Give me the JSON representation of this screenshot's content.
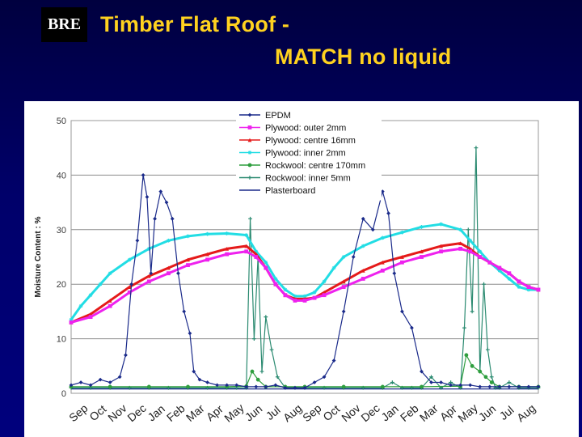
{
  "logo": "BRE",
  "title": {
    "line1": "Timber Flat Roof -",
    "line2": "MATCH no liquid"
  },
  "chart_data": {
    "type": "line",
    "title": "Timber Flat Roof - MATCH no liquid",
    "ylabel": "Moisture Content : %",
    "xlabel": "",
    "ylim": [
      0,
      50
    ],
    "yticks": [
      0,
      10,
      20,
      30,
      40,
      50
    ],
    "xlim": [
      0,
      24
    ],
    "categories": [
      "Sep",
      "Oct",
      "Nov",
      "Dec",
      "Jan",
      "Feb",
      "Mar",
      "Apr",
      "May",
      "Jun",
      "Jul",
      "Aug",
      "Sep",
      "Oct",
      "Nov",
      "Dec",
      "Jan",
      "Feb",
      "Mar",
      "Apr",
      "May",
      "Jun",
      "Jul",
      "Aug"
    ],
    "grid": "horizontal",
    "legend_position": "top-center",
    "series": [
      {
        "name": "EPDM",
        "color": "#1a2a8a",
        "marker": "diamond",
        "style": "spiky",
        "x": [
          0,
          0.5,
          1,
          1.5,
          2,
          2.5,
          2.8,
          3.1,
          3.4,
          3.7,
          3.9,
          4.1,
          4.3,
          4.6,
          4.9,
          5.2,
          5.5,
          5.8,
          6.1,
          6.3,
          6.6,
          7,
          7.5,
          8,
          8.5,
          9,
          9.5,
          10,
          10.5,
          11,
          11.5,
          12,
          12.5,
          13,
          13.5,
          14,
          14.5,
          15,
          15.5,
          16,
          16.3,
          16.6,
          17,
          17.5,
          18,
          18.5,
          19,
          19.5,
          20,
          20.5,
          21,
          21.5,
          22,
          22.5,
          23,
          23.5,
          24
        ],
        "y": [
          1.5,
          2,
          1.5,
          2.5,
          2,
          3,
          7,
          20,
          28,
          40,
          36,
          22,
          32,
          37,
          35,
          32,
          22,
          15,
          11,
          4,
          2.5,
          2,
          1.5,
          1.5,
          1.5,
          1.2,
          1.2,
          1.2,
          1.5,
          1,
          1,
          1,
          2,
          3,
          6,
          15,
          25,
          32,
          30,
          37,
          33,
          22,
          15,
          12,
          4,
          2,
          2,
          1.5,
          1.5,
          1.5,
          1.2,
          1.2,
          1.2,
          1.2,
          1.2,
          1.2,
          1.2
        ]
      },
      {
        "name": "Plywood: outer 2mm",
        "color": "#ee22ee",
        "marker": "square",
        "x": [
          0,
          1,
          2,
          3,
          4,
          5,
          6,
          7,
          8,
          9,
          9.5,
          10,
          10.5,
          11,
          11.5,
          12,
          12.5,
          13,
          14,
          15,
          16,
          17,
          18,
          19,
          20,
          20.5,
          21,
          21.5,
          22,
          22.5,
          23,
          23.5,
          24
        ],
        "y": [
          13,
          14,
          16,
          18.5,
          20.5,
          22,
          23.5,
          24.5,
          25.5,
          26,
          25,
          23,
          20,
          18,
          17,
          17,
          17.5,
          18,
          19.5,
          21,
          22.5,
          24,
          25,
          26,
          26.5,
          26,
          25,
          24,
          23,
          22,
          20.5,
          19.5,
          19
        ]
      },
      {
        "name": "Plywood: centre 16mm",
        "color": "#e51a1a",
        "marker": "triangle",
        "x": [
          0,
          1,
          2,
          3,
          4,
          5,
          6,
          7,
          8,
          9,
          9.5,
          10,
          10.5,
          11,
          11.5,
          12,
          12.5,
          13,
          14,
          15,
          16,
          17,
          18,
          19,
          20,
          20.5,
          21,
          21.5,
          22,
          22.5,
          23,
          23.5,
          24
        ],
        "y": [
          13,
          14.5,
          17,
          19.5,
          21.5,
          23,
          24.5,
          25.5,
          26.5,
          27,
          25.5,
          23,
          20,
          18,
          17.3,
          17.3,
          17.5,
          18.5,
          20.5,
          22.5,
          24,
          25,
          26,
          27,
          27.5,
          26.5,
          25,
          24,
          23,
          22,
          20.5,
          19.5,
          19
        ]
      },
      {
        "name": "Plywood: inner 2mm",
        "color": "#22dde4",
        "marker": "star",
        "x": [
          0,
          0.5,
          1,
          1.5,
          2,
          3,
          4,
          5,
          6,
          7,
          8,
          9,
          9.5,
          10,
          10.5,
          11,
          11.5,
          12,
          12.5,
          13,
          13.5,
          14,
          15,
          16,
          17,
          18,
          19,
          20,
          20.5,
          21,
          21.5,
          22,
          22.5,
          23,
          23.5,
          24
        ],
        "y": [
          13.5,
          16,
          18,
          20,
          22,
          24.5,
          26.5,
          28,
          28.8,
          29.2,
          29.3,
          29,
          26,
          24,
          21,
          19,
          17.8,
          17.8,
          18.5,
          20.5,
          23,
          25,
          27,
          28.5,
          29.5,
          30.5,
          31,
          30,
          28,
          26,
          24,
          22.5,
          21,
          19.5,
          19,
          19
        ]
      },
      {
        "name": "Rockwool: centre 170mm",
        "color": "#2e9e3e",
        "marker": "circle",
        "x": [
          0,
          2,
          4,
          6,
          8,
          9,
          9.3,
          9.6,
          10,
          11,
          12,
          14,
          16,
          18,
          20,
          20.3,
          20.6,
          21,
          21.3,
          21.6,
          22,
          23,
          24
        ],
        "y": [
          1.2,
          1.2,
          1.2,
          1.2,
          1.2,
          1.3,
          4,
          2.5,
          1.2,
          1.2,
          1.2,
          1.2,
          1.2,
          1.2,
          1.3,
          7,
          5,
          4,
          3,
          2,
          1.2,
          1.2,
          1.2
        ]
      },
      {
        "name": "Rockwool: inner 5mm",
        "color": "#2a8a70",
        "marker": "plus",
        "style": "spiky",
        "x": [
          0,
          1,
          2,
          3,
          4,
          5,
          6,
          7,
          8,
          8.5,
          9,
          9.2,
          9.4,
          9.6,
          9.8,
          10,
          10.3,
          10.6,
          11,
          11.5,
          12,
          13,
          14,
          15,
          16,
          16.5,
          17,
          17.5,
          18,
          18.5,
          19,
          19.5,
          20,
          20.2,
          20.4,
          20.6,
          20.8,
          21,
          21.2,
          21.4,
          21.6,
          21.8,
          22,
          22.5,
          23,
          23.5,
          24
        ],
        "y": [
          1,
          1,
          1,
          1,
          1,
          1,
          1,
          1,
          1,
          1,
          1,
          32,
          10,
          25,
          4,
          14,
          8,
          3,
          1,
          1,
          1,
          1,
          1,
          1,
          1,
          2,
          1,
          1,
          1,
          3,
          1,
          2,
          1,
          12,
          30,
          15,
          45,
          4,
          20,
          8,
          3,
          1,
          1,
          2,
          1,
          1,
          1
        ]
      },
      {
        "name": "Plasterboard",
        "color": "#1a2a8a",
        "marker": "none",
        "x": [
          0,
          24
        ],
        "y": [
          0.8,
          0.8
        ]
      }
    ]
  }
}
